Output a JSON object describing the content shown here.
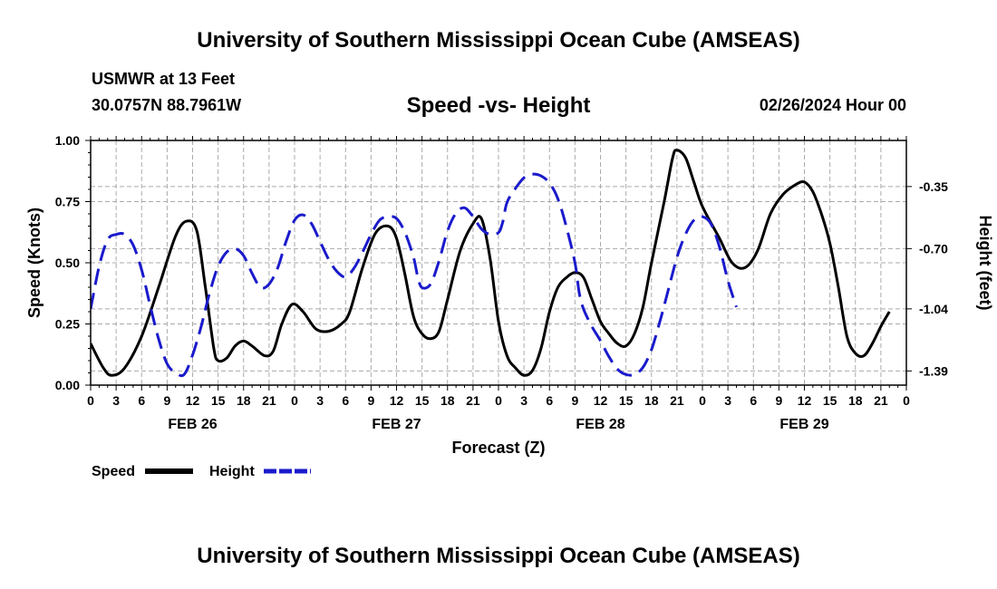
{
  "header": {
    "title": "University of Southern Mississippi Ocean Cube (AMSEAS)",
    "station": "USMWR at 13 Feet",
    "coords": "30.0757N  88.7961W",
    "date": "02/26/2024 Hour 00"
  },
  "footer": {
    "title": "University of Southern Mississippi Ocean Cube (AMSEAS)"
  },
  "colors": {
    "speed": "#000000",
    "height": "#1a1acc",
    "grid": "#aaaaaa"
  },
  "chart_data": {
    "type": "line",
    "title": "Speed -vs- Height",
    "xlabel": "Forecast (Z)",
    "ylabel": "Speed (Knots)",
    "y2label": "Height (feet)",
    "xlim": [
      0,
      96
    ],
    "ylim": [
      0,
      1.0
    ],
    "y2lim": [
      -1.47,
      -0.09
    ],
    "yticks": [
      "0.00",
      "0.25",
      "0.50",
      "0.75",
      "1.00"
    ],
    "y2ticks": [
      "-0.35",
      "-0.70",
      "-1.04",
      "-1.39"
    ],
    "y2tick_values": [
      -0.35,
      -0.7,
      -1.04,
      -1.39
    ],
    "xtick_labels": [
      "0",
      "3",
      "6",
      "9",
      "12",
      "15",
      "18",
      "21",
      "0",
      "3",
      "6",
      "9",
      "12",
      "15",
      "18",
      "21",
      "0",
      "3",
      "6",
      "9",
      "12",
      "15",
      "18",
      "21",
      "0",
      "3",
      "6",
      "9",
      "12",
      "15",
      "18",
      "21",
      "0"
    ],
    "day_labels": [
      {
        "label": "FEB 26",
        "hour": 12
      },
      {
        "label": "FEB 27",
        "hour": 36
      },
      {
        "label": "FEB 28",
        "hour": 60
      },
      {
        "label": "FEB 29",
        "hour": 84
      }
    ],
    "series": [
      {
        "name": "Speed",
        "axis": "left",
        "style": "solid",
        "points": [
          [
            0,
            0.17
          ],
          [
            1.5,
            0.07
          ],
          [
            2.5,
            0.04
          ],
          [
            4,
            0.07
          ],
          [
            6,
            0.2
          ],
          [
            8,
            0.4
          ],
          [
            10,
            0.61
          ],
          [
            11.3,
            0.67
          ],
          [
            12.5,
            0.63
          ],
          [
            13.5,
            0.4
          ],
          [
            14.5,
            0.15
          ],
          [
            15,
            0.1
          ],
          [
            16,
            0.11
          ],
          [
            17,
            0.16
          ],
          [
            18,
            0.18
          ],
          [
            19,
            0.16
          ],
          [
            20.5,
            0.12
          ],
          [
            21.5,
            0.14
          ],
          [
            22.5,
            0.25
          ],
          [
            23.7,
            0.33
          ],
          [
            25,
            0.3
          ],
          [
            26.5,
            0.23
          ],
          [
            28,
            0.22
          ],
          [
            29.5,
            0.25
          ],
          [
            30.5,
            0.3
          ],
          [
            32,
            0.48
          ],
          [
            33.5,
            0.62
          ],
          [
            35,
            0.65
          ],
          [
            36,
            0.6
          ],
          [
            37,
            0.45
          ],
          [
            38,
            0.28
          ],
          [
            39,
            0.21
          ],
          [
            40,
            0.19
          ],
          [
            41,
            0.22
          ],
          [
            42,
            0.35
          ],
          [
            43.5,
            0.55
          ],
          [
            45,
            0.66
          ],
          [
            46,
            0.68
          ],
          [
            47,
            0.52
          ],
          [
            48,
            0.26
          ],
          [
            49,
            0.12
          ],
          [
            50,
            0.07
          ],
          [
            51,
            0.04
          ],
          [
            52,
            0.06
          ],
          [
            53,
            0.15
          ],
          [
            54,
            0.3
          ],
          [
            55,
            0.4
          ],
          [
            56,
            0.44
          ],
          [
            57,
            0.46
          ],
          [
            58,
            0.44
          ],
          [
            59,
            0.35
          ],
          [
            60,
            0.26
          ],
          [
            61,
            0.21
          ],
          [
            62,
            0.17
          ],
          [
            63,
            0.16
          ],
          [
            64,
            0.21
          ],
          [
            65,
            0.32
          ],
          [
            66,
            0.5
          ],
          [
            67.5,
            0.75
          ],
          [
            68.5,
            0.93
          ],
          [
            69,
            0.96
          ],
          [
            70,
            0.93
          ],
          [
            71,
            0.83
          ],
          [
            72,
            0.73
          ],
          [
            74,
            0.6
          ],
          [
            75.5,
            0.5
          ],
          [
            77,
            0.48
          ],
          [
            78.5,
            0.55
          ],
          [
            80,
            0.7
          ],
          [
            81.5,
            0.78
          ],
          [
            83,
            0.82
          ],
          [
            84,
            0.83
          ],
          [
            85,
            0.79
          ],
          [
            86,
            0.7
          ],
          [
            87,
            0.58
          ],
          [
            88,
            0.4
          ],
          [
            89,
            0.2
          ],
          [
            90,
            0.13
          ],
          [
            91,
            0.12
          ],
          [
            92,
            0.17
          ],
          [
            93,
            0.24
          ],
          [
            94,
            0.3
          ]
        ]
      },
      {
        "name": "Height",
        "axis": "right",
        "style": "dashed",
        "points": [
          [
            0,
            -1.04
          ],
          [
            1,
            -0.8
          ],
          [
            2,
            -0.65
          ],
          [
            3,
            -0.62
          ],
          [
            4,
            -0.62
          ],
          [
            5,
            -0.68
          ],
          [
            6,
            -0.82
          ],
          [
            7,
            -1.02
          ],
          [
            8,
            -1.21
          ],
          [
            9,
            -1.35
          ],
          [
            10,
            -1.4
          ],
          [
            11,
            -1.41
          ],
          [
            12,
            -1.3
          ],
          [
            13,
            -1.14
          ],
          [
            14,
            -0.95
          ],
          [
            15,
            -0.8
          ],
          [
            16,
            -0.72
          ],
          [
            17,
            -0.7
          ],
          [
            18,
            -0.74
          ],
          [
            19,
            -0.84
          ],
          [
            20,
            -0.92
          ],
          [
            21,
            -0.9
          ],
          [
            22,
            -0.81
          ],
          [
            23,
            -0.66
          ],
          [
            24,
            -0.54
          ],
          [
            25,
            -0.51
          ],
          [
            26,
            -0.56
          ],
          [
            27,
            -0.66
          ],
          [
            28,
            -0.76
          ],
          [
            29,
            -0.83
          ],
          [
            30,
            -0.86
          ],
          [
            31,
            -0.81
          ],
          [
            32,
            -0.72
          ],
          [
            33,
            -0.62
          ],
          [
            34,
            -0.54
          ],
          [
            35,
            -0.52
          ],
          [
            36,
            -0.53
          ],
          [
            37,
            -0.61
          ],
          [
            38,
            -0.75
          ],
          [
            38.5,
            -0.86
          ],
          [
            39,
            -0.92
          ],
          [
            40,
            -0.9
          ],
          [
            41,
            -0.77
          ],
          [
            42,
            -0.6
          ],
          [
            43,
            -0.5
          ],
          [
            44,
            -0.47
          ],
          [
            45,
            -0.52
          ],
          [
            46,
            -0.59
          ],
          [
            47,
            -0.62
          ],
          [
            48,
            -0.61
          ],
          [
            48.5,
            -0.55
          ],
          [
            49,
            -0.44
          ],
          [
            50,
            -0.36
          ],
          [
            51,
            -0.3
          ],
          [
            52,
            -0.28
          ],
          [
            53,
            -0.29
          ],
          [
            54,
            -0.33
          ],
          [
            55,
            -0.42
          ],
          [
            56,
            -0.58
          ],
          [
            57,
            -0.78
          ],
          [
            57.5,
            -0.95
          ],
          [
            58,
            -1.04
          ],
          [
            59,
            -1.14
          ],
          [
            60,
            -1.22
          ],
          [
            61,
            -1.31
          ],
          [
            62,
            -1.38
          ],
          [
            63,
            -1.41
          ],
          [
            64,
            -1.41
          ],
          [
            65,
            -1.37
          ],
          [
            66,
            -1.27
          ],
          [
            67,
            -1.11
          ],
          [
            68,
            -0.93
          ],
          [
            69,
            -0.75
          ],
          [
            70,
            -0.62
          ],
          [
            71,
            -0.54
          ],
          [
            72,
            -0.52
          ],
          [
            73,
            -0.56
          ],
          [
            74,
            -0.69
          ],
          [
            75,
            -0.88
          ],
          [
            76,
            -1.03
          ]
        ]
      }
    ],
    "legend": [
      {
        "label": "Speed",
        "style": "solid"
      },
      {
        "label": "Height",
        "style": "dashed"
      }
    ],
    "legend_position": "bottom-left",
    "grid": true
  }
}
